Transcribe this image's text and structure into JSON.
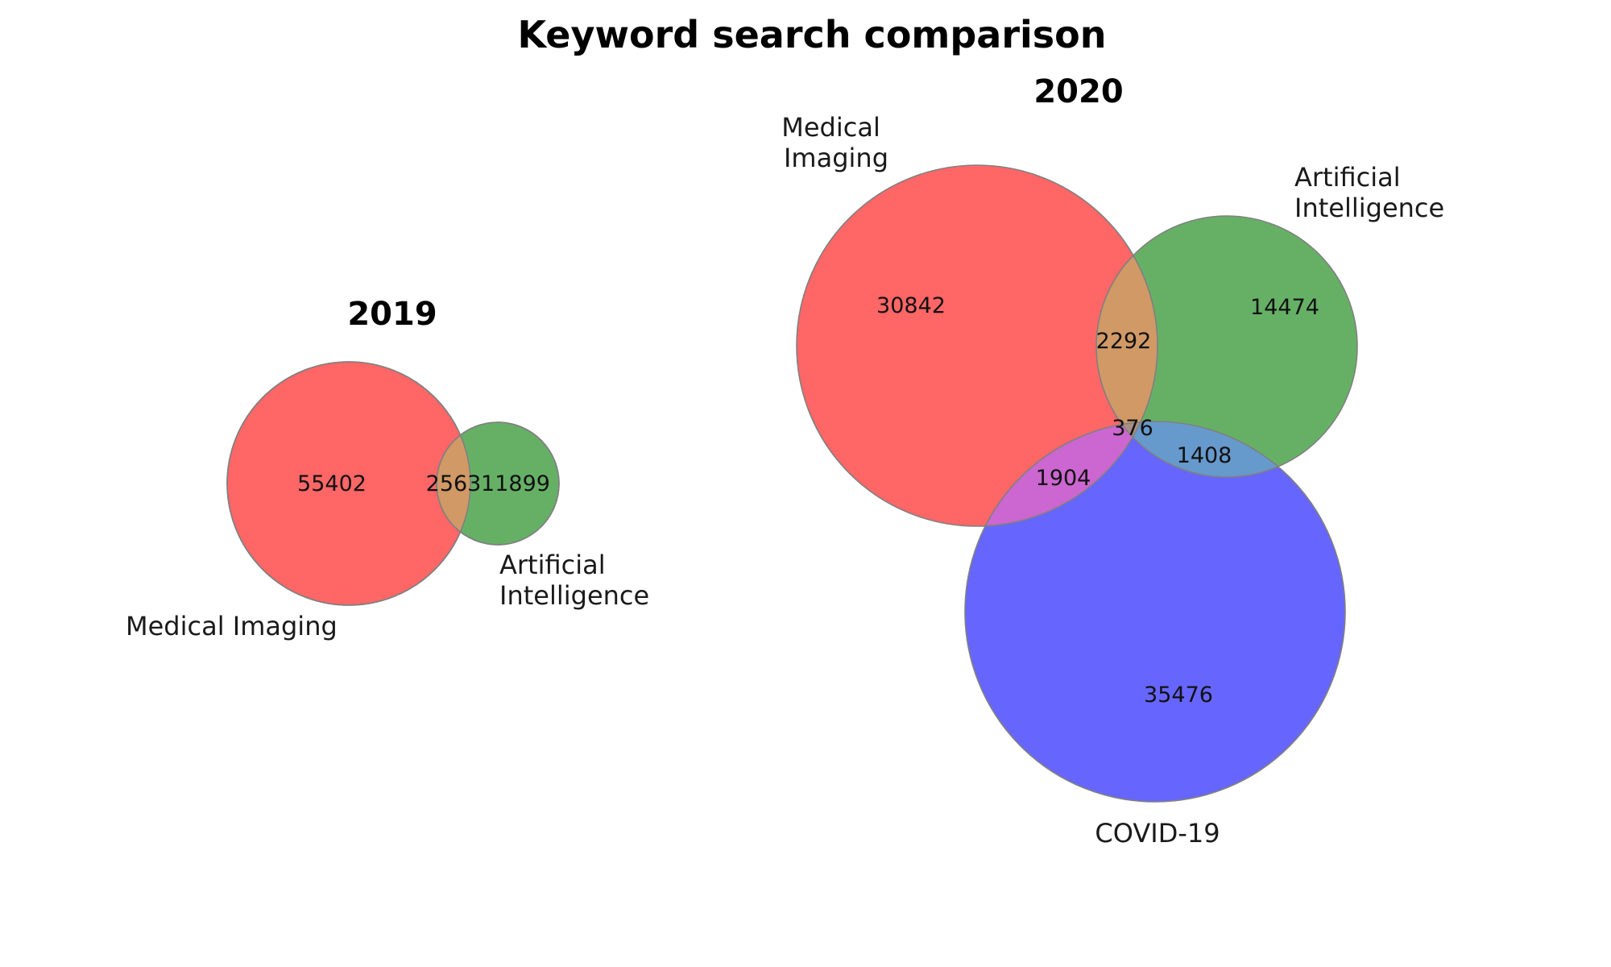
{
  "title": "Keyword search comparison",
  "colors": {
    "medical_imaging": "#ff6666",
    "artificial_intelligence": "#66b066",
    "covid19": "#6666ff",
    "mi_ai": "#d09966",
    "mi_covid": "#cc66d0",
    "ai_covid": "#6699cc",
    "outline": "#808080"
  },
  "venn_2019": {
    "title": "2019",
    "sets": [
      {
        "key": "mi",
        "label": "Medical Imaging",
        "size": 57965
      },
      {
        "key": "ai",
        "label": "Artificial Intelligence",
        "label_lines": [
          "Artificial",
          "Intelligence"
        ],
        "size": 14462
      }
    ],
    "regions": [
      {
        "key": "mi_only",
        "sets": [
          "Medical Imaging"
        ],
        "value": 55402
      },
      {
        "key": "mi_ai",
        "sets": [
          "Medical Imaging",
          "Artificial Intelligence"
        ],
        "value": 2563
      },
      {
        "key": "ai_only",
        "sets": [
          "Artificial Intelligence"
        ],
        "value": 11899
      }
    ]
  },
  "venn_2020": {
    "title": "2020",
    "sets": [
      {
        "key": "mi",
        "label": "Medical Imaging",
        "label_lines": [
          "Medical",
          "Imaging"
        ],
        "size": 35414
      },
      {
        "key": "ai",
        "label": "Artificial Intelligence",
        "label_lines": [
          "Artificial",
          "Intelligence"
        ],
        "size": 18550
      },
      {
        "key": "covid",
        "label": "COVID-19",
        "size": 39164
      }
    ],
    "regions": [
      {
        "key": "mi_only",
        "sets": [
          "Medical Imaging"
        ],
        "value": 30842
      },
      {
        "key": "ai_only",
        "sets": [
          "Artificial Intelligence"
        ],
        "value": 14474
      },
      {
        "key": "mi_ai",
        "sets": [
          "Medical Imaging",
          "Artificial Intelligence"
        ],
        "value": 2292
      },
      {
        "key": "mi_ai_covid",
        "sets": [
          "Medical Imaging",
          "Artificial Intelligence",
          "COVID-19"
        ],
        "value": 376
      },
      {
        "key": "mi_covid",
        "sets": [
          "Medical Imaging",
          "COVID-19"
        ],
        "value": 1904
      },
      {
        "key": "ai_covid",
        "sets": [
          "Artificial Intelligence",
          "COVID-19"
        ],
        "value": 1408
      },
      {
        "key": "covid_only",
        "sets": [
          "COVID-19"
        ],
        "value": 35476
      }
    ]
  }
}
